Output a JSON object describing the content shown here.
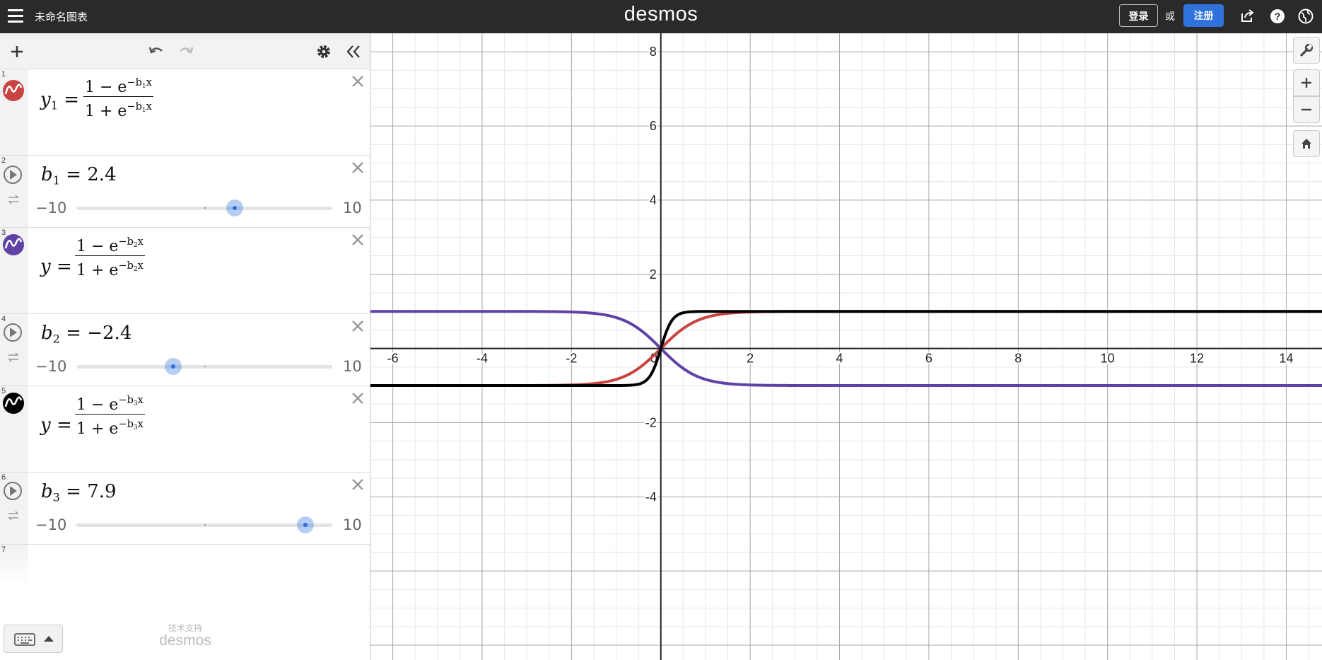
{
  "topbar": {
    "graph_title": "未命名图表",
    "brand": "desmos",
    "login_label": "登录",
    "or_label": "或",
    "signup_label": "注册",
    "icons": [
      "menu-icon",
      "share-icon",
      "help-icon",
      "language-icon"
    ]
  },
  "toolbar": {
    "icons": [
      "add-icon",
      "undo-icon",
      "redo-icon",
      "settings-icon",
      "collapse-icon"
    ]
  },
  "expressions": [
    {
      "index": "1",
      "type": "function",
      "color": "#c74440",
      "lhs": "y",
      "lhs_sub": "1",
      "numerator": "1 − e",
      "denominator": "1 + e",
      "exp": "−b",
      "exp_sub": "1",
      "exp_var": "x"
    },
    {
      "index": "2",
      "type": "slider",
      "name": "b",
      "name_sub": "1",
      "value": "2.4",
      "min": "−10",
      "max": "10",
      "fraction": 0.62
    },
    {
      "index": "3",
      "type": "function",
      "color": "#6042a6",
      "lhs": "y",
      "lhs_sub": "",
      "numerator": "1 − e",
      "denominator": "1 + e",
      "exp": "−b",
      "exp_sub": "2",
      "exp_var": "x"
    },
    {
      "index": "4",
      "type": "slider",
      "name": "b",
      "name_sub": "2",
      "value": "−2.4",
      "min": "−10",
      "max": "10",
      "fraction": 0.38
    },
    {
      "index": "5",
      "type": "function",
      "color": "#000000",
      "lhs": "y",
      "lhs_sub": "",
      "numerator": "1 − e",
      "denominator": "1 + e",
      "exp": "−b",
      "exp_sub": "3",
      "exp_var": "x"
    },
    {
      "index": "6",
      "type": "slider",
      "name": "b",
      "name_sub": "3",
      "value": "7.9",
      "min": "−10",
      "max": "10",
      "fraction": 0.895
    },
    {
      "index": "7",
      "type": "empty"
    }
  ],
  "keyboard": {
    "icon": "keyboard-icon",
    "toggle_icon": "caret-up-icon"
  },
  "powered_by": {
    "small": "技术支持",
    "logo": "desmos"
  },
  "graph": {
    "x_range": [
      -6.5,
      14.8
    ],
    "y_range": [
      -8.4,
      8.5
    ],
    "x_tick_labels": [
      "-6",
      "-4",
      "-2",
      "0",
      "2",
      "4",
      "6",
      "8",
      "10",
      "12",
      "14"
    ],
    "y_tick_labels": [
      "8",
      "6",
      "4",
      "2",
      "-2",
      "-4"
    ],
    "controls": [
      "wrench-icon",
      "zoom-in-icon",
      "zoom-out-icon",
      "home-icon"
    ]
  },
  "chart_data": {
    "type": "line",
    "series": [
      {
        "expr": "y1=(1-e^(-b1 x))/(1+e^(-b1 x))",
        "b": 2.4,
        "color": "#c74440"
      },
      {
        "expr": "y=(1-e^(-b2 x))/(1+e^(-b2 x))",
        "b": -2.4,
        "color": "#6042a6"
      },
      {
        "expr": "y=(1-e^(-b3 x))/(1+e^(-b3 x))",
        "b": 7.9,
        "color": "#000000"
      }
    ],
    "grid": true
  }
}
